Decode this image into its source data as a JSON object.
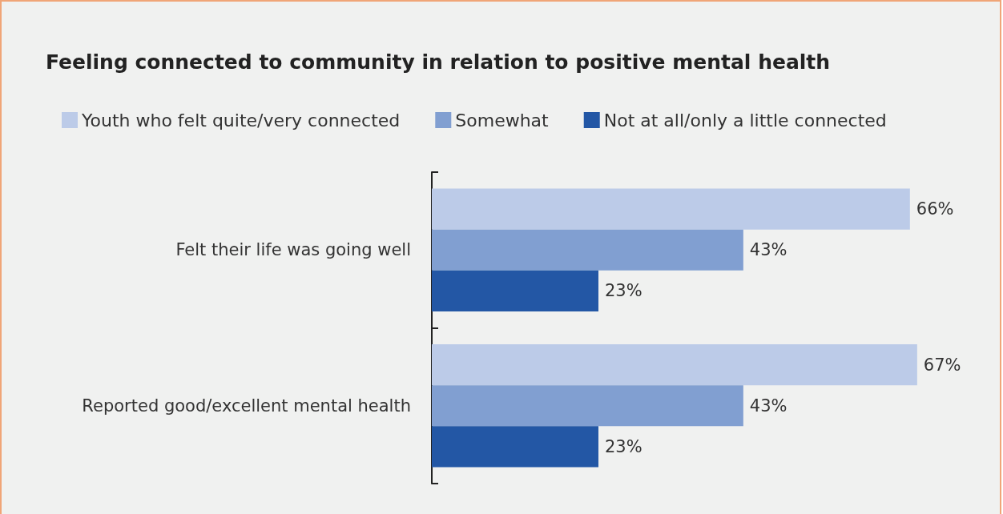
{
  "chart_data": {
    "type": "bar",
    "orientation": "horizontal",
    "title": "Feeling connected to community in relation to positive mental health",
    "categories": [
      "Felt their life was going well",
      "Reported good/excellent mental health"
    ],
    "series": [
      {
        "name": "Youth who felt quite/very connected",
        "color": "#bccbe8",
        "values": [
          66,
          67
        ],
        "value_labels": [
          "66%",
          "67%"
        ]
      },
      {
        "name": "Somewhat",
        "color": "#819fd1",
        "values": [
          43,
          43
        ],
        "value_labels": [
          "43%",
          "43%"
        ]
      },
      {
        "name": "Not at all/only a little connected",
        "color": "#2357a5",
        "values": [
          23,
          23
        ],
        "value_labels": [
          "23%",
          "23%"
        ]
      }
    ],
    "legend": "top"
  }
}
